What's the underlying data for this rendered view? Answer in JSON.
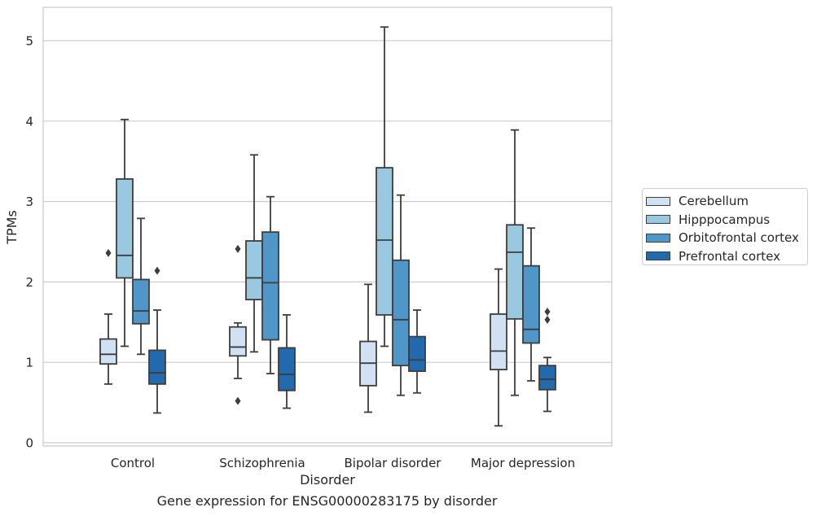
{
  "figure": {
    "caption": "Gene expression for ENSG00000283175 by disorder"
  },
  "chart_data": {
    "type": "box",
    "xlabel": "Disorder",
    "ylabel": "TPMs",
    "ylim": [
      -0.05,
      5.4
    ],
    "yticks": [
      0,
      1,
      2,
      3,
      4,
      5
    ],
    "grid": true,
    "legend_position": "right",
    "categories": [
      "Control",
      "Schizophrenia",
      "Bipolar disorder",
      "Major depression"
    ],
    "series": [
      {
        "name": "Cerebellum",
        "color": "#d0e1f2",
        "boxes": [
          {
            "whislo": 0.73,
            "q1": 0.98,
            "med": 1.1,
            "q3": 1.29,
            "whishi": 1.6,
            "fliers": [
              2.36
            ]
          },
          {
            "whislo": 0.8,
            "q1": 1.08,
            "med": 1.19,
            "q3": 1.44,
            "whishi": 1.49,
            "fliers": [
              0.52,
              2.41
            ]
          },
          {
            "whislo": 0.38,
            "q1": 0.71,
            "med": 0.99,
            "q3": 1.26,
            "whishi": 1.97,
            "fliers": []
          },
          {
            "whislo": 0.21,
            "q1": 0.91,
            "med": 1.14,
            "q3": 1.6,
            "whishi": 2.16,
            "fliers": []
          }
        ]
      },
      {
        "name": "Hipppocampus",
        "color": "#9ac8e0",
        "boxes": [
          {
            "whislo": 1.2,
            "q1": 2.05,
            "med": 2.33,
            "q3": 3.28,
            "whishi": 4.02,
            "fliers": []
          },
          {
            "whislo": 1.13,
            "q1": 1.78,
            "med": 2.05,
            "q3": 2.51,
            "whishi": 3.58,
            "fliers": []
          },
          {
            "whislo": 1.2,
            "q1": 1.59,
            "med": 2.52,
            "q3": 3.42,
            "whishi": 5.17,
            "fliers": []
          },
          {
            "whislo": 0.59,
            "q1": 1.54,
            "med": 2.37,
            "q3": 2.71,
            "whishi": 3.89,
            "fliers": []
          }
        ]
      },
      {
        "name": "Orbitofrontal cortex",
        "color": "#5096c8",
        "boxes": [
          {
            "whislo": 1.1,
            "q1": 1.48,
            "med": 1.64,
            "q3": 2.03,
            "whishi": 2.79,
            "fliers": []
          },
          {
            "whislo": 0.86,
            "q1": 1.28,
            "med": 1.99,
            "q3": 2.62,
            "whishi": 3.06,
            "fliers": []
          },
          {
            "whislo": 0.59,
            "q1": 0.96,
            "med": 1.53,
            "q3": 2.27,
            "whishi": 3.08,
            "fliers": []
          },
          {
            "whislo": 0.77,
            "q1": 1.24,
            "med": 1.41,
            "q3": 2.2,
            "whishi": 2.67,
            "fliers": []
          }
        ]
      },
      {
        "name": "Prefrontal cortex",
        "color": "#2369ae",
        "boxes": [
          {
            "whislo": 0.37,
            "q1": 0.73,
            "med": 0.87,
            "q3": 1.15,
            "whishi": 1.65,
            "fliers": [
              2.14
            ]
          },
          {
            "whislo": 0.43,
            "q1": 0.65,
            "med": 0.85,
            "q3": 1.18,
            "whishi": 1.59,
            "fliers": []
          },
          {
            "whislo": 0.62,
            "q1": 0.89,
            "med": 1.03,
            "q3": 1.32,
            "whishi": 1.65,
            "fliers": []
          },
          {
            "whislo": 0.39,
            "q1": 0.66,
            "med": 0.79,
            "q3": 0.96,
            "whishi": 1.06,
            "fliers": [
              1.53,
              1.63
            ]
          }
        ]
      }
    ]
  }
}
